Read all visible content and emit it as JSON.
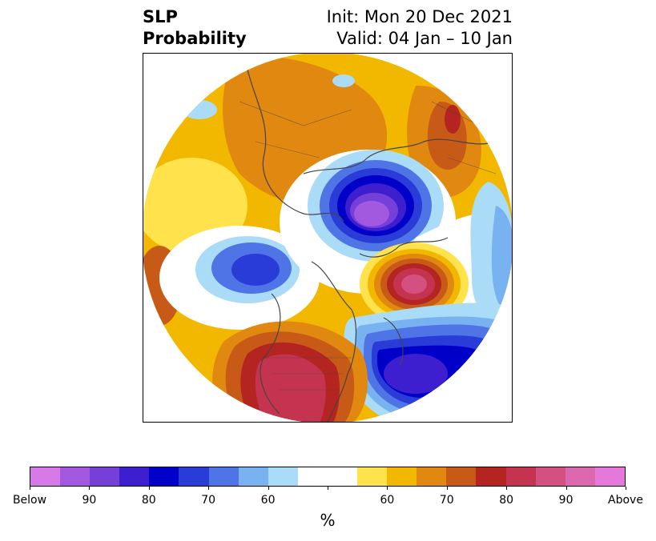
{
  "header": {
    "title_line1": "SLP",
    "title_line2": "Probability",
    "init": "Init: Mon 20 Dec 2021",
    "valid": "Valid: 04 Jan – 10 Jan"
  },
  "map": {
    "projection": "north-polar-stereographic",
    "field": "SLP probability anomaly"
  },
  "colorbar": {
    "unit": "%",
    "colors": [
      "#d67ae8",
      "#a259e0",
      "#7640d8",
      "#3d1fd0",
      "#0000c8",
      "#2a3cd8",
      "#4f74e6",
      "#78b2f0",
      "#aadcf8",
      "#ffffff",
      "#ffffff",
      "#ffe24c",
      "#f2b800",
      "#e08810",
      "#c85a18",
      "#b42420",
      "#c43450",
      "#d45080",
      "#dc68b0",
      "#e678dc"
    ],
    "tick_labels": [
      "Below",
      "90",
      "80",
      "70",
      "60",
      "",
      "60",
      "70",
      "80",
      "90",
      "Above"
    ]
  }
}
